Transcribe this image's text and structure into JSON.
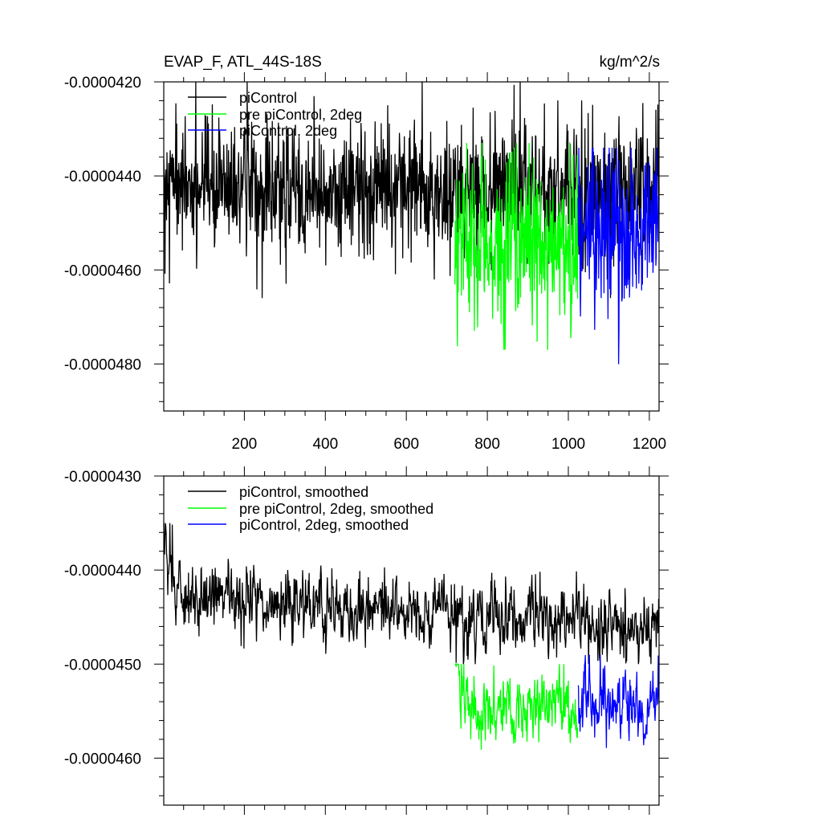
{
  "colors": {
    "piControl": "#000000",
    "pre_piControl_2deg": "#00ff00",
    "piControl_2deg": "#0000ff"
  },
  "chart_data": [
    {
      "type": "line",
      "title": "EVAP_F, ATL_44S-18S",
      "units": "kg/m^2/s",
      "xlim": [
        1,
        1224
      ],
      "ylim": [
        -4.9e-05,
        -4.2e-05
      ],
      "x_ticks": [
        200,
        400,
        600,
        800,
        1000,
        1200
      ],
      "x_tick_labels": [
        "200",
        "400",
        "600",
        "800",
        "1000",
        "1200"
      ],
      "y_ticks": [
        -4.2e-05,
        -4.4e-05,
        -4.6e-05,
        -4.8e-05
      ],
      "y_tick_labels": [
        "-0.0000420",
        "-0.0000440",
        "-0.0000460",
        "-0.0000480"
      ],
      "legend_position": "top-left",
      "series": [
        {
          "name": "piControl",
          "color": "#000000",
          "x_range": [
            1,
            1224
          ],
          "level": -4.43e-05,
          "noise_sd": 6.8e-07,
          "min": -4.66e-05,
          "max": -4.2e-05
        },
        {
          "name": "pre piControl, 2deg",
          "color": "#00ff00",
          "x_range": [
            720,
            1023
          ],
          "level": -4.55e-05,
          "noise_sd": 8.5e-07,
          "min": -4.77e-05,
          "max": -4.33e-05
        },
        {
          "name": "piControl, 2deg",
          "color": "#0000ff",
          "x_range": [
            1024,
            1224
          ],
          "level": -4.52e-05,
          "noise_sd": 8.5e-07,
          "min": -4.84e-05,
          "max": -4.34e-05
        }
      ]
    },
    {
      "type": "line",
      "title": "",
      "xlim": [
        1,
        1224
      ],
      "ylim": [
        -4.65e-05,
        -4.3e-05
      ],
      "x_ticks": [
        200,
        400,
        600,
        800,
        1000,
        1200
      ],
      "x_tick_labels": [],
      "y_ticks": [
        -4.3e-05,
        -4.4e-05,
        -4.5e-05,
        -4.6e-05
      ],
      "y_tick_labels": [
        "-0.0000430",
        "-0.0000440",
        "-0.0000450",
        "-0.0000460"
      ],
      "legend_position": "top-left",
      "series": [
        {
          "name": "piControl, smoothed",
          "color": "#000000",
          "x_range": [
            1,
            1224
          ],
          "start_value": -4.35e-05,
          "level": -4.43e-05,
          "drift_end": -4.46e-05,
          "noise_sd": 2.8e-07,
          "min": -4.5e-05,
          "max": -4.35e-05
        },
        {
          "name": "pre piControl, 2deg, smoothed",
          "color": "#00ff00",
          "x_range": [
            720,
            1023
          ],
          "start_value": -4.47e-05,
          "level": -4.55e-05,
          "noise_sd": 3e-07,
          "min": -4.64e-05,
          "max": -4.5e-05
        },
        {
          "name": "piControl, 2deg, smoothed",
          "color": "#0000ff",
          "x_range": [
            1024,
            1224
          ],
          "level": -4.54e-05,
          "noise_sd": 3e-07,
          "min": -4.61e-05,
          "max": -4.49e-05
        }
      ]
    }
  ]
}
